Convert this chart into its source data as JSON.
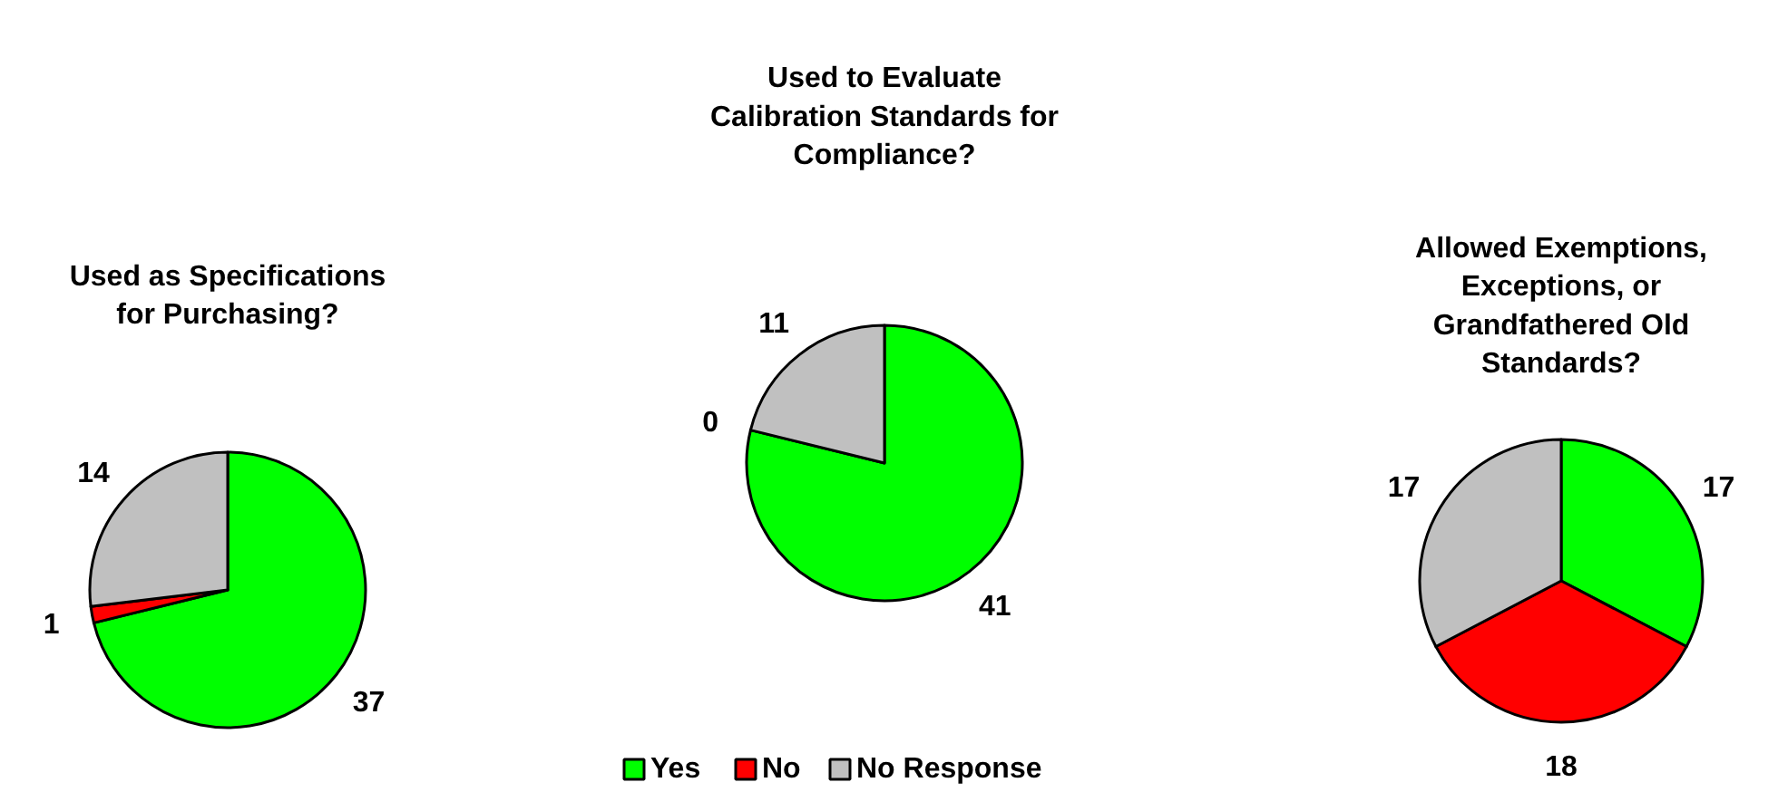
{
  "chart_data": [
    {
      "type": "pie",
      "title": "Used as Specifications for Purchasing?",
      "categories": [
        "Yes",
        "No",
        "No Response"
      ],
      "values": [
        37,
        1,
        14
      ],
      "colors": [
        "#00ff00",
        "#ff0000",
        "#c0c0c0"
      ],
      "data_labels": true,
      "legend": "bottom"
    },
    {
      "type": "pie",
      "title": "Used to Evaluate Calibration Standards for Compliance?",
      "categories": [
        null,
        null,
        null
      ],
      "values": [
        41,
        0,
        11
      ],
      "colors": [
        "#00ff00",
        "#ff0000",
        "#c0c0c0"
      ],
      "value_labels": [
        "41",
        "0",
        "11"
      ]
    },
    {
      "type": "pie",
      "title": "Allowed Exemptions, Exceptions, or Grandfathered Old Standards?",
      "categories": [
        null,
        null,
        null
      ],
      "values": [
        17,
        18,
        17
      ],
      "colors": [
        "#00ff00",
        "#ff0000",
        "#c0c0c0"
      ],
      "data_labels": true
    }
  ]
}
